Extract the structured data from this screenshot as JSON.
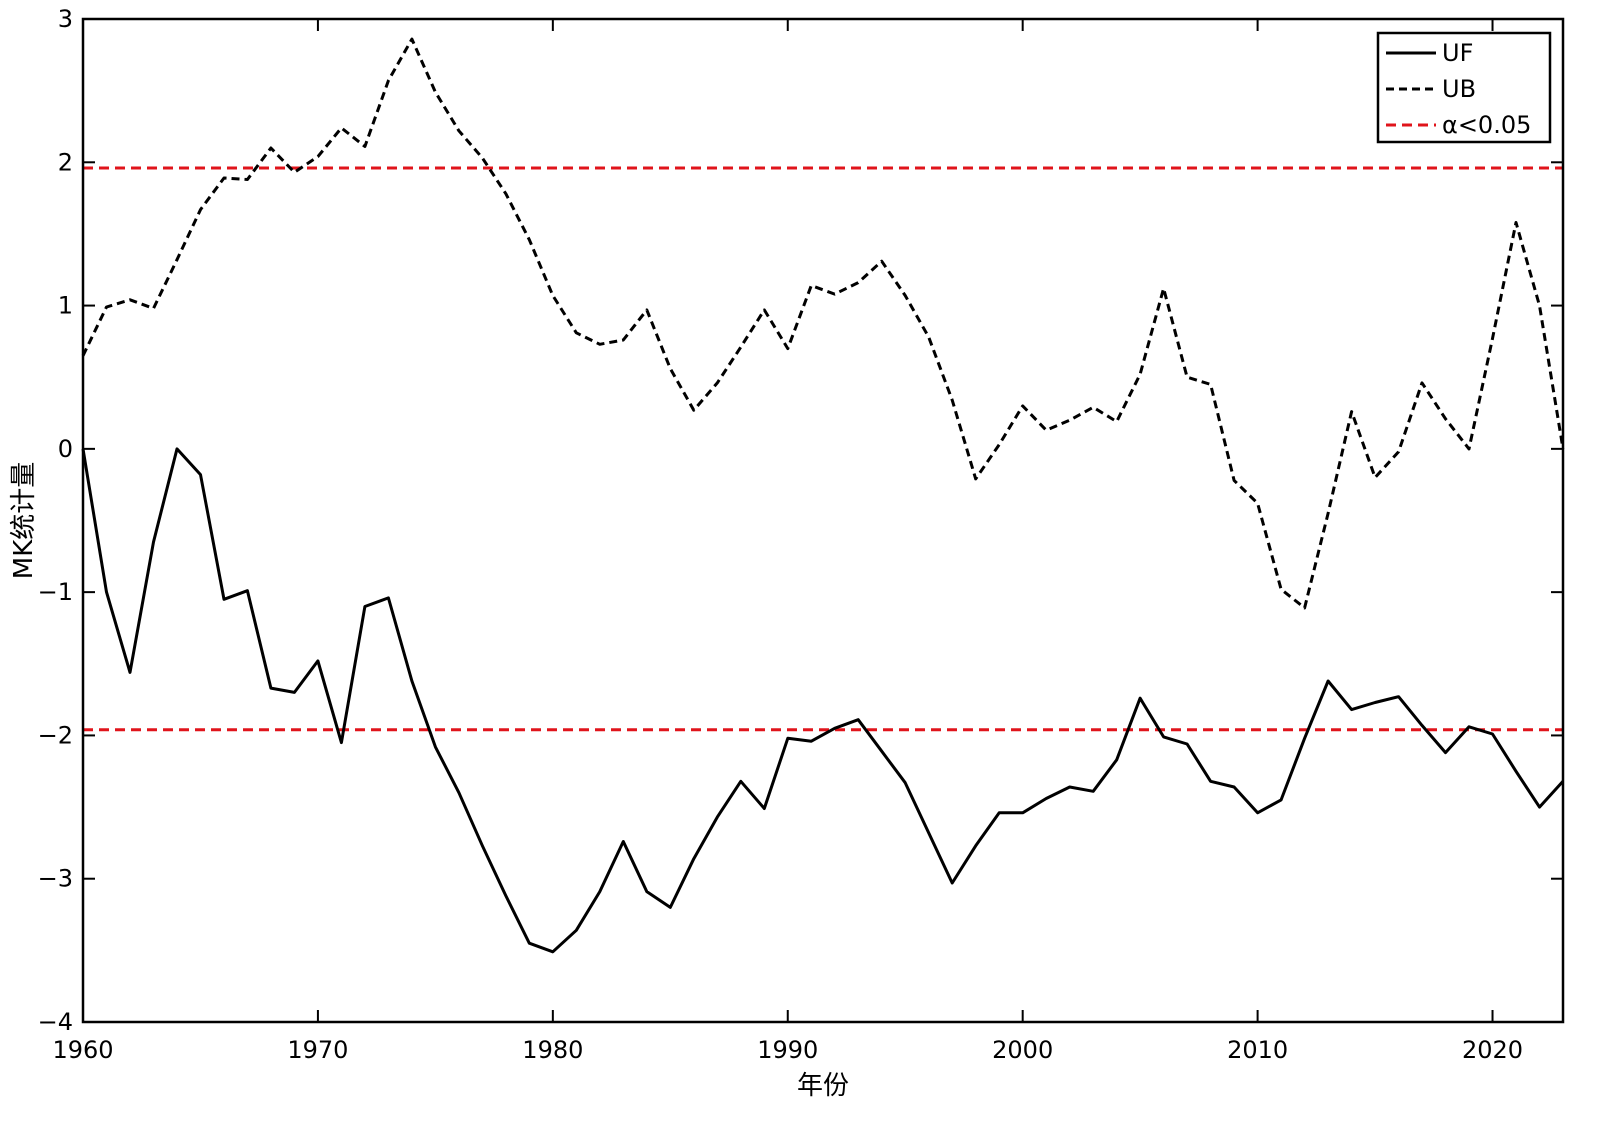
{
  "chart_data": {
    "type": "line",
    "title": "",
    "xlabel": "年份",
    "ylabel": "MK统计量",
    "xlim": [
      1960,
      2023
    ],
    "ylim": [
      -4,
      3
    ],
    "x_ticks": [
      1960,
      1970,
      1980,
      1990,
      2000,
      2010,
      2020
    ],
    "y_ticks": [
      -4,
      -3,
      -2,
      -1,
      0,
      1,
      2,
      3
    ],
    "x": [
      1960,
      1961,
      1962,
      1963,
      1964,
      1965,
      1966,
      1967,
      1968,
      1969,
      1970,
      1971,
      1972,
      1973,
      1974,
      1975,
      1976,
      1977,
      1978,
      1979,
      1980,
      1981,
      1982,
      1983,
      1984,
      1985,
      1986,
      1987,
      1988,
      1989,
      1990,
      1991,
      1992,
      1993,
      1994,
      1995,
      1996,
      1997,
      1998,
      1999,
      2000,
      2001,
      2002,
      2003,
      2004,
      2005,
      2006,
      2007,
      2008,
      2009,
      2010,
      2011,
      2012,
      2013,
      2014,
      2015,
      2016,
      2017,
      2018,
      2019,
      2020,
      2021,
      2022,
      2023
    ],
    "series": [
      {
        "name": "UF",
        "style": "solid",
        "color": "#000000",
        "values": [
          0,
          -1.0,
          -1.56,
          -0.65,
          0,
          -0.18,
          -1.05,
          -0.99,
          -1.67,
          -1.7,
          -1.48,
          -2.05,
          -1.1,
          -1.04,
          -1.62,
          -2.08,
          -2.4,
          -2.77,
          -3.12,
          -3.45,
          -3.51,
          -3.36,
          -3.09,
          -2.74,
          -3.09,
          -3.2,
          -2.86,
          -2.57,
          -2.32,
          -2.51,
          -2.02,
          -2.04,
          -1.95,
          -1.89,
          -2.11,
          -2.33,
          -2.68,
          -3.03,
          -2.77,
          -2.54,
          -2.54,
          -2.44,
          -2.36,
          -2.39,
          -2.17,
          -1.74,
          -2.01,
          -2.06,
          -2.32,
          -2.36,
          -2.54,
          -2.45,
          -2.02,
          -1.62,
          -1.82,
          -1.77,
          -1.73,
          -1.93,
          -2.12,
          -1.94,
          -1.99,
          -2.25,
          -2.5,
          -2.32
        ]
      },
      {
        "name": "UB",
        "style": "dashed",
        "color": "#000000",
        "values": [
          0.65,
          0.99,
          1.04,
          0.98,
          1.32,
          1.67,
          1.89,
          1.88,
          2.1,
          1.93,
          2.04,
          2.24,
          2.11,
          2.57,
          2.86,
          2.49,
          2.22,
          2.03,
          1.78,
          1.46,
          1.07,
          0.81,
          0.73,
          0.76,
          0.97,
          0.56,
          0.27,
          0.46,
          0.71,
          0.97,
          0.7,
          1.14,
          1.08,
          1.16,
          1.31,
          1.07,
          0.78,
          0.34,
          -0.21,
          0.03,
          0.3,
          0.13,
          0.2,
          0.29,
          0.19,
          0.52,
          1.12,
          0.5,
          0.45,
          -0.22,
          -0.38,
          -0.98,
          -1.11,
          -0.45,
          0.26,
          -0.2,
          -0.02,
          0.46,
          0.21,
          0,
          0.77,
          1.58,
          1.0,
          0
        ]
      },
      {
        "name": "α<0.05",
        "style": "dashed",
        "color": "#e0141b",
        "threshold": 1.96,
        "values_upper": [
          1.96,
          1.96
        ],
        "values_lower": [
          -1.96,
          -1.96
        ]
      }
    ],
    "legend": {
      "position": "top-right",
      "entries": [
        "UF",
        "UB",
        "α<0.05"
      ]
    },
    "grid": false
  }
}
